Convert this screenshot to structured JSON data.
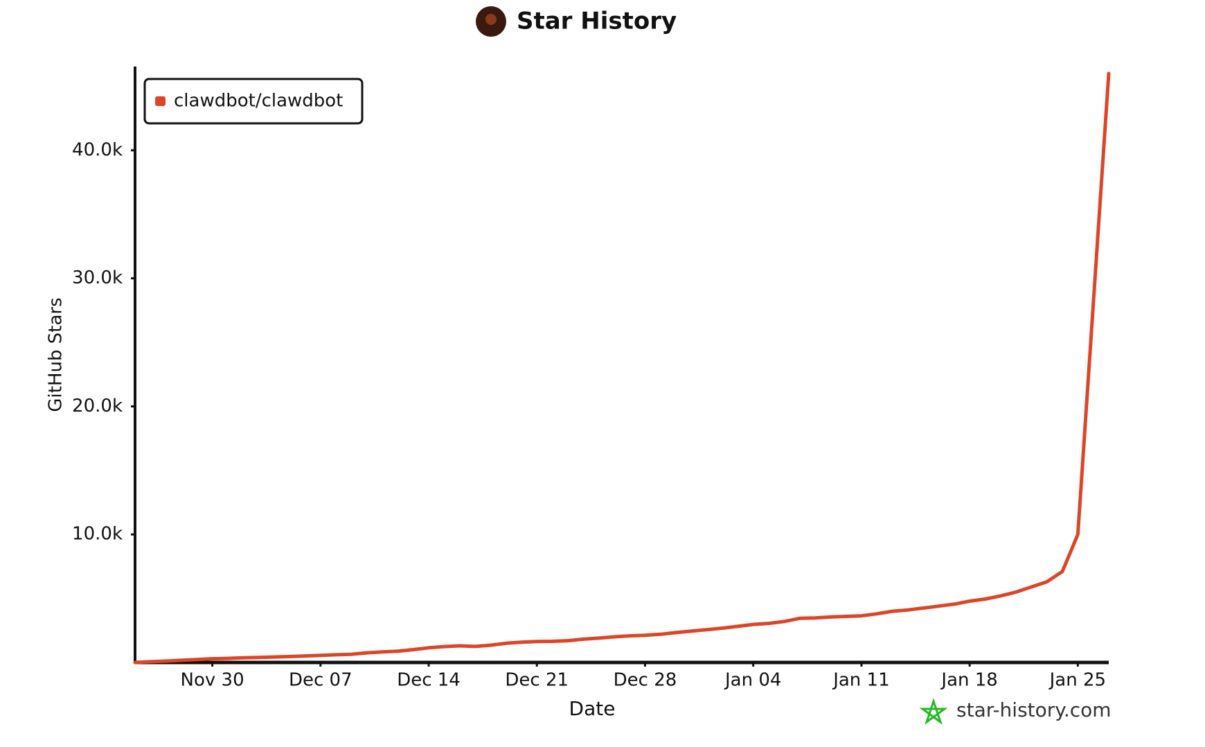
{
  "chart_data": {
    "type": "line",
    "title": "Star History",
    "xlabel": "Date",
    "ylabel": "GitHub Stars",
    "watermark": "star-history.com",
    "x": [
      "Nov 25",
      "Nov 26",
      "Nov 27",
      "Nov 28",
      "Nov 29",
      "Nov 30",
      "Dec 01",
      "Dec 02",
      "Dec 03",
      "Dec 04",
      "Dec 05",
      "Dec 06",
      "Dec 07",
      "Dec 08",
      "Dec 09",
      "Dec 10",
      "Dec 11",
      "Dec 12",
      "Dec 13",
      "Dec 14",
      "Dec 15",
      "Dec 16",
      "Dec 17",
      "Dec 18",
      "Dec 19",
      "Dec 20",
      "Dec 21",
      "Dec 22",
      "Dec 23",
      "Dec 24",
      "Dec 25",
      "Dec 26",
      "Dec 27",
      "Dec 28",
      "Dec 29",
      "Dec 30",
      "Dec 31",
      "Jan 01",
      "Jan 02",
      "Jan 03",
      "Jan 04",
      "Jan 05",
      "Jan 06",
      "Jan 07",
      "Jan 08",
      "Jan 09",
      "Jan 10",
      "Jan 11",
      "Jan 12",
      "Jan 13",
      "Jan 14",
      "Jan 15",
      "Jan 16",
      "Jan 17",
      "Jan 18",
      "Jan 19",
      "Jan 20",
      "Jan 21",
      "Jan 22",
      "Jan 23",
      "Jan 24",
      "Jan 25",
      "Jan 26",
      "Jan 27"
    ],
    "series": [
      {
        "name": "clawdbot/clawdbot",
        "color": "#dd4528",
        "values": [
          0,
          60,
          110,
          170,
          230,
          290,
          320,
          360,
          390,
          430,
          460,
          510,
          550,
          600,
          640,
          750,
          820,
          880,
          1000,
          1150,
          1240,
          1300,
          1250,
          1350,
          1500,
          1580,
          1640,
          1650,
          1700,
          1820,
          1900,
          2000,
          2080,
          2120,
          2200,
          2330,
          2450,
          2560,
          2680,
          2820,
          2970,
          3050,
          3200,
          3450,
          3480,
          3550,
          3600,
          3640,
          3800,
          4000,
          4100,
          4250,
          4400,
          4550,
          4790,
          4950,
          5200,
          5500,
          5900,
          6300,
          7100,
          10000,
          28000,
          46000
        ]
      }
    ],
    "xticks": [
      "Nov 30",
      "Dec 07",
      "Dec 14",
      "Dec 21",
      "Dec 28",
      "Jan 04",
      "Jan 11",
      "Jan 18",
      "Jan 25"
    ],
    "ylim": [
      0,
      46000
    ],
    "yticks": [
      {
        "value": 10000,
        "label": "10.0k"
      },
      {
        "value": 20000,
        "label": "20.0k"
      },
      {
        "value": 30000,
        "label": "30.0k"
      },
      {
        "value": 40000,
        "label": "40.0k"
      }
    ],
    "legend": "top-left",
    "grid": false
  }
}
